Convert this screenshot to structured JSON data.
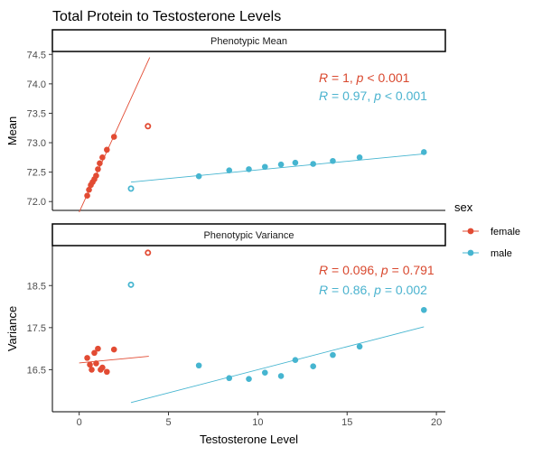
{
  "chart_data": {
    "type": "scatter",
    "title": "Total Protein to Testosterone Levels",
    "xlabel": "Testosterone Level",
    "xlim": [
      -1.5,
      20.5
    ],
    "x_ticks": [
      0,
      5,
      10,
      15,
      20
    ],
    "x_tick_labels": [
      "0",
      "5",
      "10",
      "15",
      "20"
    ],
    "legend": {
      "title": "sex",
      "position": "right",
      "entries": [
        {
          "label": "female",
          "color": "#E24B33"
        },
        {
          "label": "male",
          "color": "#46B5D0"
        }
      ]
    },
    "colors": {
      "female": "#E24B33",
      "male": "#46B5D0",
      "female_label": "#D9492F",
      "male_label": "#4BB3CF"
    },
    "panels": [
      {
        "strip": "Phenotypic Mean",
        "ylabel": "Mean",
        "ylim": [
          71.85,
          74.55
        ],
        "y_ticks": [
          72.0,
          72.5,
          73.0,
          73.5,
          74.0,
          74.5
        ],
        "y_tick_labels": [
          "72.0",
          "72.5",
          "73.0",
          "73.5",
          "74.0",
          "74.5"
        ],
        "stats": [
          {
            "sex": "female",
            "r": "1",
            "p_op": "<",
            "p": "0.001"
          },
          {
            "sex": "male",
            "r": "0.97",
            "p_op": "<",
            "p": "0.001"
          }
        ],
        "series": [
          {
            "name": "female",
            "points": [
              [
                0.45,
                72.1
              ],
              [
                0.55,
                72.2
              ],
              [
                0.65,
                72.28
              ],
              [
                0.75,
                72.33
              ],
              [
                0.85,
                72.38
              ],
              [
                0.95,
                72.44
              ],
              [
                1.05,
                72.55
              ],
              [
                1.15,
                72.65
              ],
              [
                1.3,
                72.75
              ],
              [
                1.55,
                72.88
              ],
              [
                1.95,
                73.1
              ]
            ],
            "fit": [
              [
                0.0,
                71.82
              ],
              [
                3.95,
                74.45
              ]
            ]
          },
          {
            "name": "male",
            "points": [
              [
                6.7,
                72.43
              ],
              [
                8.4,
                72.53
              ],
              [
                9.5,
                72.55
              ],
              [
                10.4,
                72.59
              ],
              [
                11.3,
                72.63
              ],
              [
                12.1,
                72.66
              ],
              [
                13.1,
                72.64
              ],
              [
                14.2,
                72.69
              ],
              [
                15.7,
                72.75
              ],
              [
                19.3,
                72.84
              ]
            ],
            "fit": [
              [
                2.9,
                72.33
              ],
              [
                19.3,
                72.81
              ]
            ]
          }
        ],
        "outliers": [
          {
            "sex": "female",
            "x": 3.85,
            "y": 73.28
          },
          {
            "sex": "male",
            "x": 2.9,
            "y": 72.22
          }
        ]
      },
      {
        "strip": "Phenotypic Variance",
        "ylabel": "Variance",
        "ylim": [
          15.5,
          19.45
        ],
        "y_ticks": [
          16.5,
          17.5,
          18.5
        ],
        "y_tick_labels": [
          "16.5",
          "17.5",
          "18.5"
        ],
        "stats": [
          {
            "sex": "female",
            "r": "0.096",
            "p_op": "=",
            "p": "0.791"
          },
          {
            "sex": "male",
            "r": "0.86",
            "p_op": "=",
            "p": "0.002"
          }
        ],
        "series": [
          {
            "name": "female",
            "points": [
              [
                0.45,
                16.78
              ],
              [
                0.6,
                16.62
              ],
              [
                0.7,
                16.5
              ],
              [
                0.85,
                16.9
              ],
              [
                0.95,
                16.65
              ],
              [
                1.05,
                17.0
              ],
              [
                1.2,
                16.5
              ],
              [
                1.3,
                16.55
              ],
              [
                1.55,
                16.45
              ],
              [
                1.95,
                16.98
              ]
            ],
            "fit": [
              [
                0.0,
                16.66
              ],
              [
                3.9,
                16.82
              ]
            ]
          },
          {
            "name": "male",
            "points": [
              [
                6.7,
                16.6
              ],
              [
                8.4,
                16.3
              ],
              [
                9.5,
                16.28
              ],
              [
                10.4,
                16.43
              ],
              [
                11.3,
                16.35
              ],
              [
                12.1,
                16.73
              ],
              [
                13.1,
                16.58
              ],
              [
                14.2,
                16.85
              ],
              [
                15.7,
                17.05
              ],
              [
                19.3,
                17.92
              ]
            ],
            "fit": [
              [
                2.9,
                15.72
              ],
              [
                19.3,
                17.52
              ]
            ]
          }
        ],
        "outliers": [
          {
            "sex": "female",
            "x": 3.85,
            "y": 19.28
          },
          {
            "sex": "male",
            "x": 2.9,
            "y": 18.52
          }
        ]
      }
    ]
  }
}
